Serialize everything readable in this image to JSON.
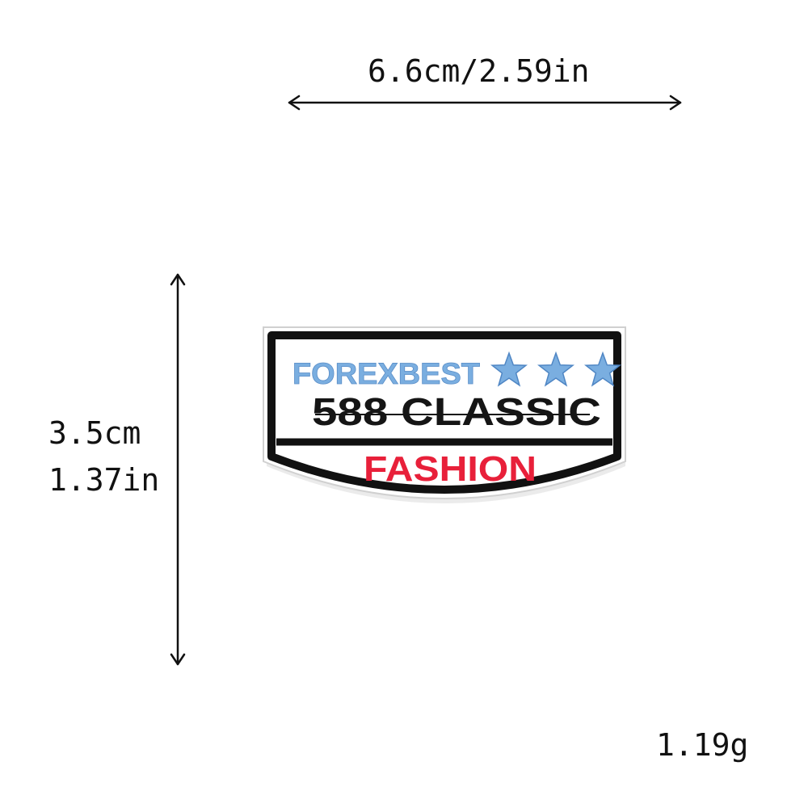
{
  "dimensions": {
    "width": "6.6cm/2.59in",
    "height_cm": "3.5cm",
    "height_in": "1.37in"
  },
  "weight": "1.19g",
  "patch": {
    "brand": "FOREXBEST",
    "stars_count": 3,
    "model": "588 CLASSIC",
    "tagline": "FASHION",
    "colors": {
      "border": "#111111",
      "brand": "#7aaee0",
      "model": "#151515",
      "tagline": "#e8203a",
      "fabric": "#ffffff"
    }
  }
}
